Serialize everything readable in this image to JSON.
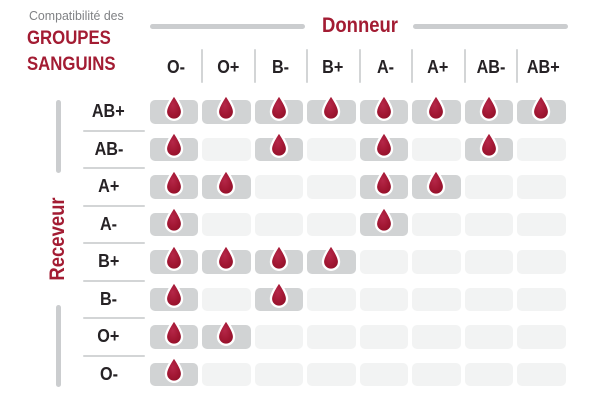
{
  "title": {
    "pretitle": "Compatibilité des",
    "line1": "GROUPES",
    "line2": "SANGUINS"
  },
  "donor_axis": {
    "label": "Donneur"
  },
  "receiver_axis": {
    "label": "Receveur"
  },
  "chart_data": {
    "type": "heatmap",
    "title": "Compatibilité des groupes sanguins",
    "x_axis_label": "Donneur",
    "y_axis_label": "Receveur",
    "columns": [
      "O-",
      "O+",
      "B-",
      "B+",
      "A-",
      "A+",
      "AB-",
      "AB+"
    ],
    "rows": [
      "AB+",
      "AB-",
      "A+",
      "A-",
      "B+",
      "B-",
      "O+",
      "O-"
    ],
    "matrix": [
      [
        1,
        1,
        1,
        1,
        1,
        1,
        1,
        1
      ],
      [
        1,
        0,
        1,
        0,
        1,
        0,
        1,
        0
      ],
      [
        1,
        1,
        0,
        0,
        1,
        1,
        0,
        0
      ],
      [
        1,
        0,
        0,
        0,
        1,
        0,
        0,
        0
      ],
      [
        1,
        1,
        1,
        1,
        0,
        0,
        0,
        0
      ],
      [
        1,
        0,
        1,
        0,
        0,
        0,
        0,
        0
      ],
      [
        1,
        1,
        0,
        0,
        0,
        0,
        0,
        0
      ],
      [
        1,
        0,
        0,
        0,
        0,
        0,
        0,
        0
      ]
    ],
    "marker_meaning": "blood-drop = compatible",
    "legend_position": "none",
    "grid": false
  },
  "colors": {
    "crimson": "#A31C33",
    "drop_center": "#B52748",
    "drop_mid": "#A21733",
    "drop_edge": "#8E0F27",
    "dark_text": "#262225",
    "muted_text": "#808285",
    "cell_filled_bg": "#D1D3D4",
    "cell_empty_bg": "#F2F3F3",
    "axis_line_gray": "#CBCDCF",
    "separator_gray": "#D3D5D6",
    "background": "#FFFFFF"
  }
}
